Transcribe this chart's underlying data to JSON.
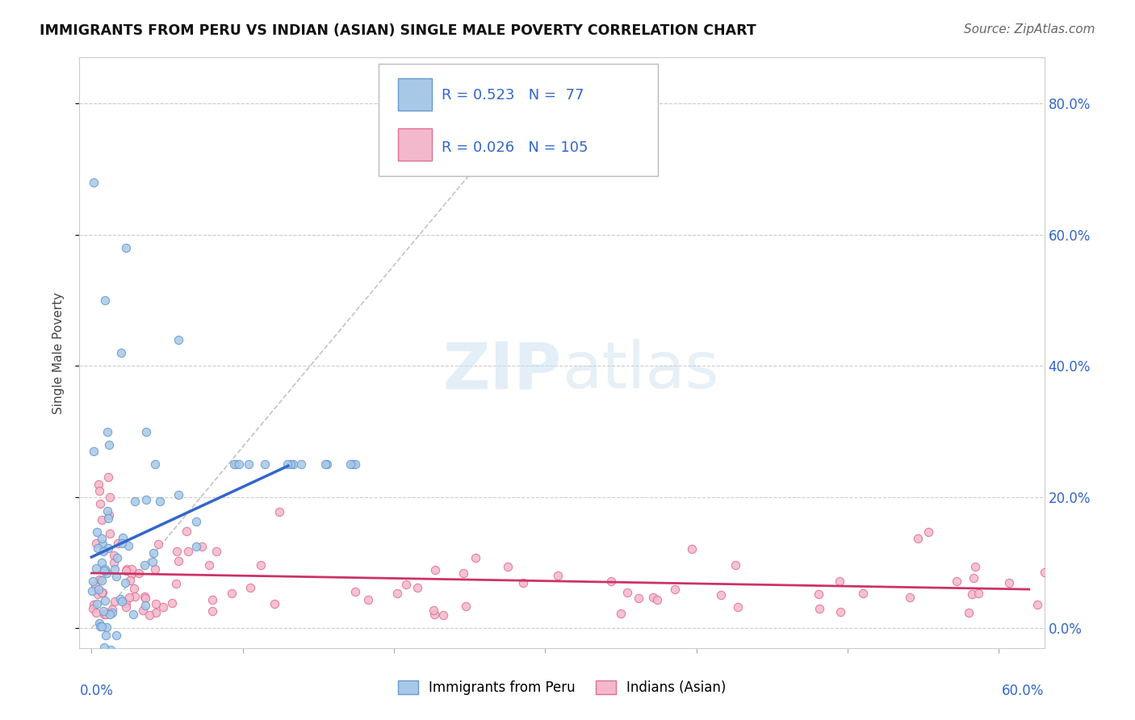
{
  "title": "IMMIGRANTS FROM PERU VS INDIAN (ASIAN) SINGLE MALE POVERTY CORRELATION CHART",
  "source": "Source: ZipAtlas.com",
  "ylabel": "Single Male Poverty",
  "color_peru_fill": "#a8c8e8",
  "color_peru_edge": "#6699cc",
  "color_india_fill": "#f4b8cc",
  "color_india_edge": "#e07090",
  "color_text_blue": "#3366cc",
  "color_line_peru": "#3366cc",
  "color_line_india": "#cc3366",
  "color_grid": "#cccccc",
  "color_dash": "#aaaaaa",
  "watermark_color": "#c8dff0",
  "xmin": 0.0,
  "xmax": 0.6,
  "ymin": 0.0,
  "ymax": 0.85,
  "yticks": [
    0.0,
    0.2,
    0.4,
    0.6,
    0.8
  ],
  "ytick_labels": [
    "0.0%",
    "20.0%",
    "40.0%",
    "60.0%",
    "80.0%"
  ],
  "legend_items": [
    {
      "label": "R = 0.523   N =  77",
      "color_fill": "#a8c8e8",
      "color_edge": "#6699cc"
    },
    {
      "label": "R = 0.026   N = 105",
      "color_fill": "#f4b8cc",
      "color_edge": "#e07090"
    }
  ],
  "bottom_legend": [
    {
      "label": "Immigrants from Peru",
      "color_fill": "#a8c8e8",
      "color_edge": "#6699cc"
    },
    {
      "label": "Indians (Asian)",
      "color_fill": "#f4b8cc",
      "color_edge": "#e07090"
    }
  ]
}
